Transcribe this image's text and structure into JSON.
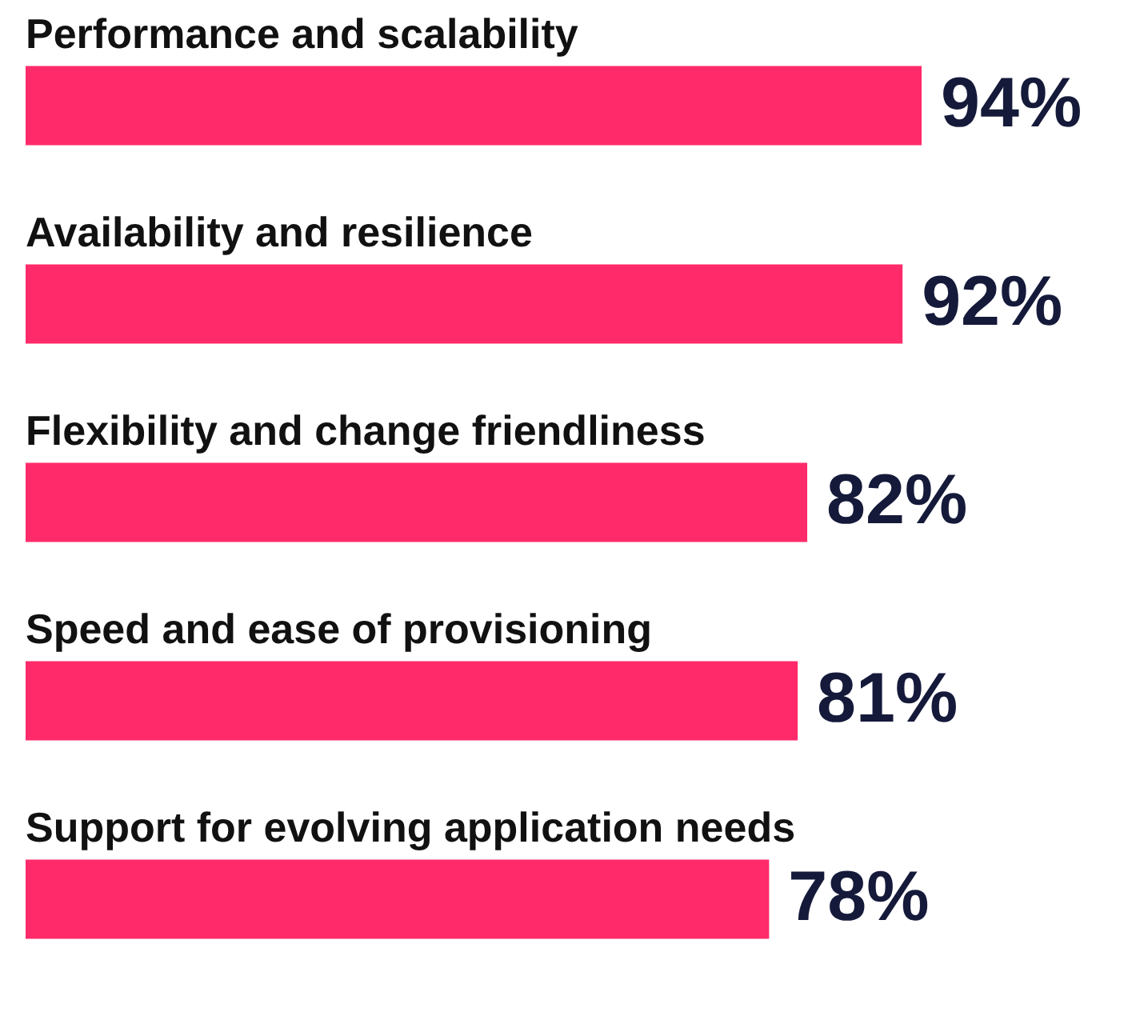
{
  "chart_data": {
    "type": "bar",
    "orientation": "horizontal",
    "tick_labels": false,
    "categories": [
      "Performance and scalability",
      "Availability and resilience",
      "Flexibility and change friendliness",
      "Speed and ease of provisioning",
      "Support for evolving application needs"
    ],
    "values": [
      94,
      92,
      82,
      81,
      78
    ],
    "value_labels": [
      "94%",
      "92%",
      "82%",
      "81%",
      "78%"
    ],
    "color": "#ff2a6a"
  }
}
